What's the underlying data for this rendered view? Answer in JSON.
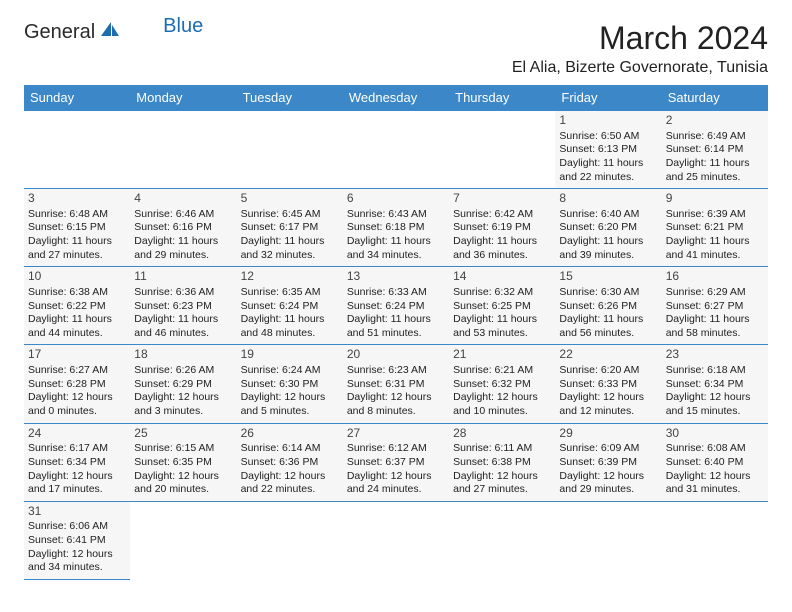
{
  "logo": {
    "text1": "General",
    "text2": "Blue"
  },
  "title": "March 2024",
  "location": "El Alia, Bizerte Governorate, Tunisia",
  "colors": {
    "header_bg": "#3b87c8",
    "header_text": "#ffffff",
    "cell_bg": "#f6f6f6",
    "border": "#3b87c8",
    "logo_blue": "#1c6cb0"
  },
  "day_headers": [
    "Sunday",
    "Monday",
    "Tuesday",
    "Wednesday",
    "Thursday",
    "Friday",
    "Saturday"
  ],
  "weeks": [
    [
      null,
      null,
      null,
      null,
      null,
      {
        "n": "1",
        "sr": "6:50 AM",
        "ss": "6:13 PM",
        "dl1": "11 hours",
        "dl2": "and 22 minutes."
      },
      {
        "n": "2",
        "sr": "6:49 AM",
        "ss": "6:14 PM",
        "dl1": "11 hours",
        "dl2": "and 25 minutes."
      }
    ],
    [
      {
        "n": "3",
        "sr": "6:48 AM",
        "ss": "6:15 PM",
        "dl1": "11 hours",
        "dl2": "and 27 minutes."
      },
      {
        "n": "4",
        "sr": "6:46 AM",
        "ss": "6:16 PM",
        "dl1": "11 hours",
        "dl2": "and 29 minutes."
      },
      {
        "n": "5",
        "sr": "6:45 AM",
        "ss": "6:17 PM",
        "dl1": "11 hours",
        "dl2": "and 32 minutes."
      },
      {
        "n": "6",
        "sr": "6:43 AM",
        "ss": "6:18 PM",
        "dl1": "11 hours",
        "dl2": "and 34 minutes."
      },
      {
        "n": "7",
        "sr": "6:42 AM",
        "ss": "6:19 PM",
        "dl1": "11 hours",
        "dl2": "and 36 minutes."
      },
      {
        "n": "8",
        "sr": "6:40 AM",
        "ss": "6:20 PM",
        "dl1": "11 hours",
        "dl2": "and 39 minutes."
      },
      {
        "n": "9",
        "sr": "6:39 AM",
        "ss": "6:21 PM",
        "dl1": "11 hours",
        "dl2": "and 41 minutes."
      }
    ],
    [
      {
        "n": "10",
        "sr": "6:38 AM",
        "ss": "6:22 PM",
        "dl1": "11 hours",
        "dl2": "and 44 minutes."
      },
      {
        "n": "11",
        "sr": "6:36 AM",
        "ss": "6:23 PM",
        "dl1": "11 hours",
        "dl2": "and 46 minutes."
      },
      {
        "n": "12",
        "sr": "6:35 AM",
        "ss": "6:24 PM",
        "dl1": "11 hours",
        "dl2": "and 48 minutes."
      },
      {
        "n": "13",
        "sr": "6:33 AM",
        "ss": "6:24 PM",
        "dl1": "11 hours",
        "dl2": "and 51 minutes."
      },
      {
        "n": "14",
        "sr": "6:32 AM",
        "ss": "6:25 PM",
        "dl1": "11 hours",
        "dl2": "and 53 minutes."
      },
      {
        "n": "15",
        "sr": "6:30 AM",
        "ss": "6:26 PM",
        "dl1": "11 hours",
        "dl2": "and 56 minutes."
      },
      {
        "n": "16",
        "sr": "6:29 AM",
        "ss": "6:27 PM",
        "dl1": "11 hours",
        "dl2": "and 58 minutes."
      }
    ],
    [
      {
        "n": "17",
        "sr": "6:27 AM",
        "ss": "6:28 PM",
        "dl1": "12 hours",
        "dl2": "and 0 minutes."
      },
      {
        "n": "18",
        "sr": "6:26 AM",
        "ss": "6:29 PM",
        "dl1": "12 hours",
        "dl2": "and 3 minutes."
      },
      {
        "n": "19",
        "sr": "6:24 AM",
        "ss": "6:30 PM",
        "dl1": "12 hours",
        "dl2": "and 5 minutes."
      },
      {
        "n": "20",
        "sr": "6:23 AM",
        "ss": "6:31 PM",
        "dl1": "12 hours",
        "dl2": "and 8 minutes."
      },
      {
        "n": "21",
        "sr": "6:21 AM",
        "ss": "6:32 PM",
        "dl1": "12 hours",
        "dl2": "and 10 minutes."
      },
      {
        "n": "22",
        "sr": "6:20 AM",
        "ss": "6:33 PM",
        "dl1": "12 hours",
        "dl2": "and 12 minutes."
      },
      {
        "n": "23",
        "sr": "6:18 AM",
        "ss": "6:34 PM",
        "dl1": "12 hours",
        "dl2": "and 15 minutes."
      }
    ],
    [
      {
        "n": "24",
        "sr": "6:17 AM",
        "ss": "6:34 PM",
        "dl1": "12 hours",
        "dl2": "and 17 minutes."
      },
      {
        "n": "25",
        "sr": "6:15 AM",
        "ss": "6:35 PM",
        "dl1": "12 hours",
        "dl2": "and 20 minutes."
      },
      {
        "n": "26",
        "sr": "6:14 AM",
        "ss": "6:36 PM",
        "dl1": "12 hours",
        "dl2": "and 22 minutes."
      },
      {
        "n": "27",
        "sr": "6:12 AM",
        "ss": "6:37 PM",
        "dl1": "12 hours",
        "dl2": "and 24 minutes."
      },
      {
        "n": "28",
        "sr": "6:11 AM",
        "ss": "6:38 PM",
        "dl1": "12 hours",
        "dl2": "and 27 minutes."
      },
      {
        "n": "29",
        "sr": "6:09 AM",
        "ss": "6:39 PM",
        "dl1": "12 hours",
        "dl2": "and 29 minutes."
      },
      {
        "n": "30",
        "sr": "6:08 AM",
        "ss": "6:40 PM",
        "dl1": "12 hours",
        "dl2": "and 31 minutes."
      }
    ],
    [
      {
        "n": "31",
        "sr": "6:06 AM",
        "ss": "6:41 PM",
        "dl1": "12 hours",
        "dl2": "and 34 minutes."
      },
      null,
      null,
      null,
      null,
      null,
      null
    ]
  ],
  "labels": {
    "sunrise": "Sunrise:",
    "sunset": "Sunset:",
    "daylight": "Daylight:"
  }
}
